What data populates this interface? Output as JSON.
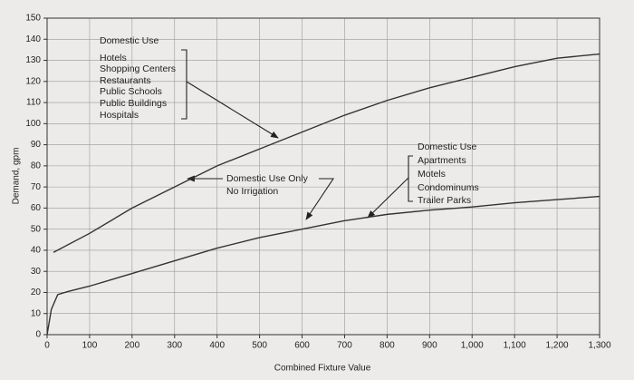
{
  "chart_data": {
    "type": "line",
    "x_label": "Combined Fixture Value",
    "y_label": "Demand, gpm",
    "xlim": [
      0,
      1300
    ],
    "ylim": [
      0,
      150
    ],
    "xticks": [
      0,
      100,
      200,
      300,
      400,
      500,
      600,
      700,
      800,
      900,
      {
        "value": 1000,
        "label": "1,000"
      },
      {
        "value": 1100,
        "label": "1,100"
      },
      {
        "value": 1200,
        "label": "1,200"
      },
      {
        "value": 1300,
        "label": "1,300"
      }
    ],
    "yticks": [
      0,
      10,
      20,
      30,
      40,
      50,
      60,
      70,
      80,
      90,
      100,
      110,
      120,
      130,
      140,
      150
    ],
    "grid": true,
    "series": [
      {
        "name": "Domestic Use Only, No Irrigation (Hotels, Shopping Centers, Restaurants, Public Schools, Public Buildings, Hospitals)",
        "color": "#333333",
        "x": [
          15,
          100,
          200,
          300,
          400,
          500,
          600,
          700,
          800,
          900,
          1000,
          1100,
          1200,
          1300
        ],
        "values": [
          39,
          48,
          60,
          70,
          80,
          88,
          96,
          104,
          111,
          117,
          122,
          127,
          131,
          133
        ]
      },
      {
        "name": "Domestic Use Only, No Irrigation (Apartments, Motels, Condominums, Trailer Parks)",
        "color": "#333333",
        "x": [
          0,
          10,
          25,
          50,
          100,
          200,
          300,
          400,
          500,
          600,
          700,
          800,
          900,
          1000,
          1100,
          1200,
          1300
        ],
        "values": [
          0,
          12,
          19,
          20.5,
          23,
          29,
          35,
          41,
          46,
          50,
          54,
          57,
          59,
          60.5,
          62.5,
          64,
          65.5
        ]
      }
    ],
    "annotations": [
      {
        "lines": [
          "Domestic Use",
          "Hotels",
          "Shopping Centers",
          "Restaurants",
          "Public Schools",
          "Public Buildings",
          "Hospitals"
        ]
      },
      {
        "lines": [
          "Domestic Use Only",
          "No Irrigation"
        ]
      },
      {
        "lines": [
          "Domestic Use",
          "Apartments",
          "Motels",
          "Condominums",
          "Trailer Parks"
        ]
      }
    ]
  }
}
